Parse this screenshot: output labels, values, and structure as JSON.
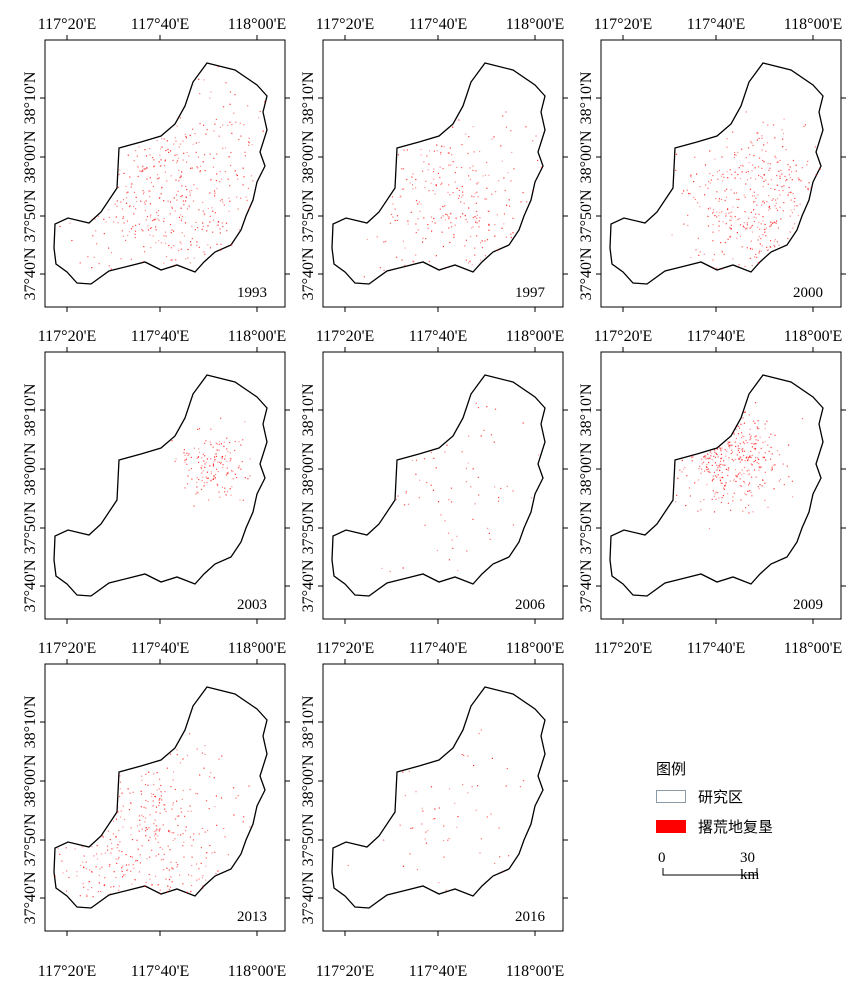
{
  "coordinates": {
    "lon_labels": [
      "117°20'E",
      "117°40'E",
      "118°00'E"
    ],
    "lat_labels": [
      "37°40'N",
      "37°50'N",
      "38°00'N",
      "38°10'N"
    ]
  },
  "panels": [
    {
      "year": "1993"
    },
    {
      "year": "1997"
    },
    {
      "year": "2000"
    },
    {
      "year": "2003"
    },
    {
      "year": "2006"
    },
    {
      "year": "2009"
    },
    {
      "year": "2013"
    },
    {
      "year": "2016"
    }
  ],
  "legend": {
    "title": "图例",
    "study_area_label": "研究区",
    "reclaim_label": "撂荒地复垦",
    "study_area_color": "#ffffff",
    "study_area_border": "#8a9aa6",
    "reclaim_color": "#ff0000"
  },
  "scale_bar": {
    "start": "0",
    "end": "30 km"
  }
}
